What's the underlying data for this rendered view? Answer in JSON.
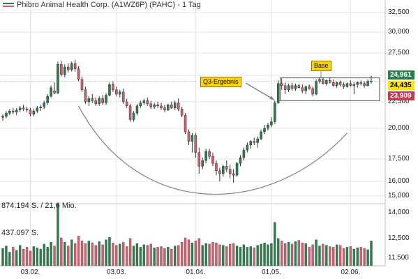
{
  "header": {
    "title": "Phibro Animal Health Corp. (A1WZ6P) (PAHC) - 1 Tag",
    "legend_colors": {
      "up": "#2e7d4f",
      "down": "#d06070"
    }
  },
  "chart_data": {
    "type": "candlestick",
    "instrument": "Phibro Animal Health Corp. (A1WZ6P) (PAHC)",
    "interval": "1 Tag",
    "currency_note": "",
    "price_axis": {
      "ticks": [
        "32,500",
        "30,000",
        "27,500",
        "25,000",
        "22,500",
        "20,000",
        "17,500",
        "16,000",
        "15,000",
        "14,000"
      ],
      "values": [
        32.5,
        30,
        27.5,
        25,
        22.5,
        20,
        17.5,
        16,
        15,
        14
      ],
      "scale": "log"
    },
    "volume_axis": {
      "ticks": [
        "12,500",
        "11,500"
      ],
      "values": [
        12.5,
        11.5
      ]
    },
    "x_ticks": [
      "03.02.",
      "03.03.",
      "01.04.",
      "01.05.",
      "02.06."
    ],
    "x_tick_index": [
      8,
      33,
      56,
      78,
      101
    ],
    "price_tags": [
      {
        "value": "24,961",
        "price": 24.961,
        "bg": "#2e7d4f",
        "color": "#ffffff"
      },
      {
        "value": "24,435",
        "price": 24.435,
        "bg": "#ffe800",
        "color": "#000000"
      },
      {
        "value": "23,909",
        "price": 23.909,
        "bg": "#c23b4f",
        "color": "#ffffff"
      }
    ],
    "volume_labels": [
      "874.194 S. / 21,6 Mio.",
      "437.097 S."
    ],
    "annotations": [
      {
        "text": "Q3-Ergebnis",
        "type": "callout",
        "target_index": 79
      },
      {
        "text": "Base",
        "type": "callout",
        "range": [
          79,
          108
        ]
      }
    ],
    "base_range_price": [
      22.6,
      24.75
    ],
    "cup_curve": true,
    "candles": [
      [
        21.0,
        21.3,
        20.7,
        21.1
      ],
      [
        21.1,
        21.6,
        20.9,
        21.4
      ],
      [
        21.4,
        21.8,
        21.2,
        21.6
      ],
      [
        21.6,
        21.9,
        21.3,
        21.5
      ],
      [
        21.5,
        21.9,
        21.2,
        21.7
      ],
      [
        21.7,
        22.1,
        21.5,
        21.9
      ],
      [
        21.9,
        22.2,
        21.6,
        21.8
      ],
      [
        21.8,
        22.0,
        21.5,
        21.7
      ],
      [
        21.7,
        21.9,
        21.1,
        21.3
      ],
      [
        21.3,
        21.8,
        21.1,
        21.6
      ],
      [
        21.6,
        22.1,
        21.4,
        21.9
      ],
      [
        21.9,
        22.2,
        21.6,
        22.0
      ],
      [
        22.0,
        22.6,
        21.8,
        22.4
      ],
      [
        22.4,
        23.2,
        22.2,
        23.0
      ],
      [
        23.0,
        24.0,
        22.9,
        23.8
      ],
      [
        23.5,
        24.3,
        23.2,
        23.3
      ],
      [
        23.3,
        26.5,
        23.2,
        26.2
      ],
      [
        26.2,
        26.6,
        24.9,
        25.1
      ],
      [
        25.1,
        26.2,
        24.8,
        25.9
      ],
      [
        25.9,
        26.3,
        25.3,
        25.6
      ],
      [
        25.6,
        26.5,
        25.4,
        26.3
      ],
      [
        26.3,
        26.7,
        25.4,
        25.7
      ],
      [
        25.7,
        26.0,
        24.4,
        24.6
      ],
      [
        24.6,
        24.9,
        23.4,
        23.6
      ],
      [
        23.6,
        23.9,
        22.3,
        22.5
      ],
      [
        22.5,
        23.0,
        22.1,
        22.8
      ],
      [
        22.8,
        23.2,
        22.4,
        22.6
      ],
      [
        22.6,
        22.9,
        22.1,
        22.3
      ],
      [
        22.3,
        23.0,
        22.1,
        22.8
      ],
      [
        22.8,
        23.1,
        22.2,
        22.4
      ],
      [
        22.4,
        23.3,
        22.2,
        23.1
      ],
      [
        23.1,
        24.3,
        23.0,
        24.1
      ],
      [
        24.1,
        24.4,
        23.4,
        23.6
      ],
      [
        23.6,
        23.9,
        23.0,
        23.2
      ],
      [
        23.2,
        23.6,
        22.9,
        23.4
      ],
      [
        23.4,
        23.7,
        22.3,
        22.5
      ],
      [
        22.5,
        22.8,
        21.9,
        22.1
      ],
      [
        22.1,
        22.3,
        20.6,
        20.8
      ],
      [
        20.8,
        21.6,
        20.6,
        21.4
      ],
      [
        21.4,
        22.3,
        21.2,
        22.1
      ],
      [
        22.1,
        22.6,
        21.9,
        22.4
      ],
      [
        22.4,
        22.8,
        22.2,
        22.6
      ],
      [
        22.6,
        22.9,
        22.1,
        22.3
      ],
      [
        22.3,
        22.6,
        21.8,
        22.0
      ],
      [
        22.0,
        22.4,
        21.8,
        22.2
      ],
      [
        22.2,
        22.5,
        21.9,
        22.1
      ],
      [
        22.1,
        22.4,
        21.7,
        21.9
      ],
      [
        21.9,
        22.2,
        21.5,
        21.7
      ],
      [
        21.7,
        22.3,
        21.6,
        22.2
      ],
      [
        22.2,
        22.5,
        21.8,
        21.9
      ],
      [
        21.9,
        22.6,
        21.7,
        22.4
      ],
      [
        22.4,
        22.8,
        21.6,
        21.8
      ],
      [
        21.8,
        22.0,
        21.0,
        21.2
      ],
      [
        21.2,
        21.4,
        19.5,
        19.7
      ],
      [
        19.7,
        19.9,
        18.6,
        18.9
      ],
      [
        18.9,
        19.6,
        18.0,
        19.4
      ],
      [
        19.4,
        19.6,
        17.6,
        18.0
      ],
      [
        18.0,
        18.4,
        16.5,
        17.0
      ],
      [
        17.0,
        17.6,
        16.8,
        17.4
      ],
      [
        17.4,
        18.3,
        17.2,
        18.1
      ],
      [
        18.1,
        18.3,
        17.5,
        17.7
      ],
      [
        17.7,
        18.0,
        17.0,
        17.2
      ],
      [
        17.2,
        17.4,
        16.4,
        16.7
      ],
      [
        16.7,
        16.9,
        16.0,
        16.5
      ],
      [
        16.5,
        17.1,
        16.3,
        17.0
      ],
      [
        17.0,
        17.4,
        16.6,
        16.8
      ],
      [
        16.8,
        17.1,
        16.2,
        16.5
      ],
      [
        16.5,
        16.8,
        15.9,
        16.4
      ],
      [
        16.4,
        17.3,
        16.3,
        17.2
      ],
      [
        17.2,
        17.8,
        17.0,
        17.6
      ],
      [
        17.6,
        18.4,
        17.4,
        18.2
      ],
      [
        18.2,
        18.8,
        18.0,
        18.6
      ],
      [
        18.6,
        19.0,
        18.3,
        18.9
      ],
      [
        18.9,
        19.2,
        18.6,
        18.8
      ],
      [
        18.8,
        19.3,
        18.4,
        19.1
      ],
      [
        19.1,
        19.9,
        19.0,
        19.7
      ],
      [
        19.7,
        20.3,
        19.5,
        20.0
      ],
      [
        20.0,
        20.5,
        19.8,
        20.3
      ],
      [
        20.3,
        21.0,
        20.1,
        20.6
      ],
      [
        20.6,
        22.6,
        20.4,
        22.4
      ],
      [
        22.4,
        24.5,
        22.3,
        24.2
      ],
      [
        24.2,
        24.7,
        23.6,
        24.0
      ],
      [
        24.0,
        24.3,
        23.2,
        23.6
      ],
      [
        23.6,
        24.2,
        23.4,
        24.0
      ],
      [
        24.0,
        24.3,
        23.5,
        23.7
      ],
      [
        23.7,
        24.2,
        23.5,
        24.0
      ],
      [
        24.0,
        24.2,
        23.7,
        23.8
      ],
      [
        23.8,
        24.1,
        23.3,
        23.5
      ],
      [
        23.5,
        24.0,
        23.2,
        23.9
      ],
      [
        23.9,
        24.1,
        23.6,
        23.7
      ],
      [
        23.7,
        23.9,
        23.0,
        23.2
      ],
      [
        23.2,
        24.6,
        23.1,
        24.4
      ],
      [
        24.4,
        24.8,
        24.2,
        24.6
      ],
      [
        24.6,
        24.8,
        24.1,
        24.2
      ],
      [
        24.2,
        24.6,
        24.0,
        24.5
      ],
      [
        24.5,
        24.8,
        24.2,
        24.3
      ],
      [
        24.3,
        24.6,
        23.9,
        24.0
      ],
      [
        24.0,
        24.4,
        23.8,
        24.3
      ],
      [
        24.3,
        24.5,
        23.9,
        24.1
      ],
      [
        24.1,
        24.3,
        23.7,
        23.9
      ],
      [
        23.9,
        24.3,
        23.8,
        24.2
      ],
      [
        24.2,
        24.5,
        23.9,
        24.0
      ],
      [
        24.0,
        24.3,
        23.2,
        24.1
      ],
      [
        24.1,
        24.4,
        23.8,
        24.3
      ],
      [
        24.3,
        24.5,
        24.0,
        24.2
      ],
      [
        24.2,
        24.4,
        23.8,
        24.0
      ],
      [
        24.0,
        24.6,
        23.9,
        24.4
      ],
      [
        24.4,
        24.96,
        24.2,
        24.44
      ]
    ],
    "volumes": [
      0.28,
      0.32,
      0.22,
      0.3,
      0.25,
      0.33,
      0.27,
      0.3,
      0.24,
      0.31,
      0.29,
      0.27,
      0.35,
      0.3,
      0.38,
      0.32,
      1.0,
      0.45,
      0.38,
      0.32,
      0.42,
      0.36,
      0.48,
      0.4,
      0.36,
      0.4,
      0.37,
      0.33,
      0.39,
      0.34,
      0.42,
      0.46,
      0.37,
      0.33,
      0.35,
      0.38,
      0.31,
      0.44,
      0.32,
      0.36,
      0.3,
      0.34,
      0.33,
      0.35,
      0.29,
      0.3,
      0.31,
      0.28,
      0.3,
      0.27,
      0.32,
      0.33,
      0.38,
      0.45,
      0.42,
      0.37,
      0.4,
      0.44,
      0.33,
      0.36,
      0.35,
      0.38,
      0.37,
      0.34,
      0.33,
      0.31,
      0.35,
      0.36,
      0.32,
      0.3,
      0.34,
      0.3,
      0.31,
      0.29,
      0.33,
      0.35,
      0.37,
      0.34,
      0.36,
      0.7,
      0.44,
      0.4,
      0.36,
      0.38,
      0.35,
      0.39,
      0.41,
      0.37,
      0.36,
      0.3,
      0.34,
      0.42,
      0.32,
      0.35,
      0.33,
      0.31,
      0.3,
      0.34,
      0.33,
      0.28,
      0.3,
      0.31,
      0.27,
      0.29,
      0.3,
      0.28,
      0.26,
      0.4
    ]
  }
}
